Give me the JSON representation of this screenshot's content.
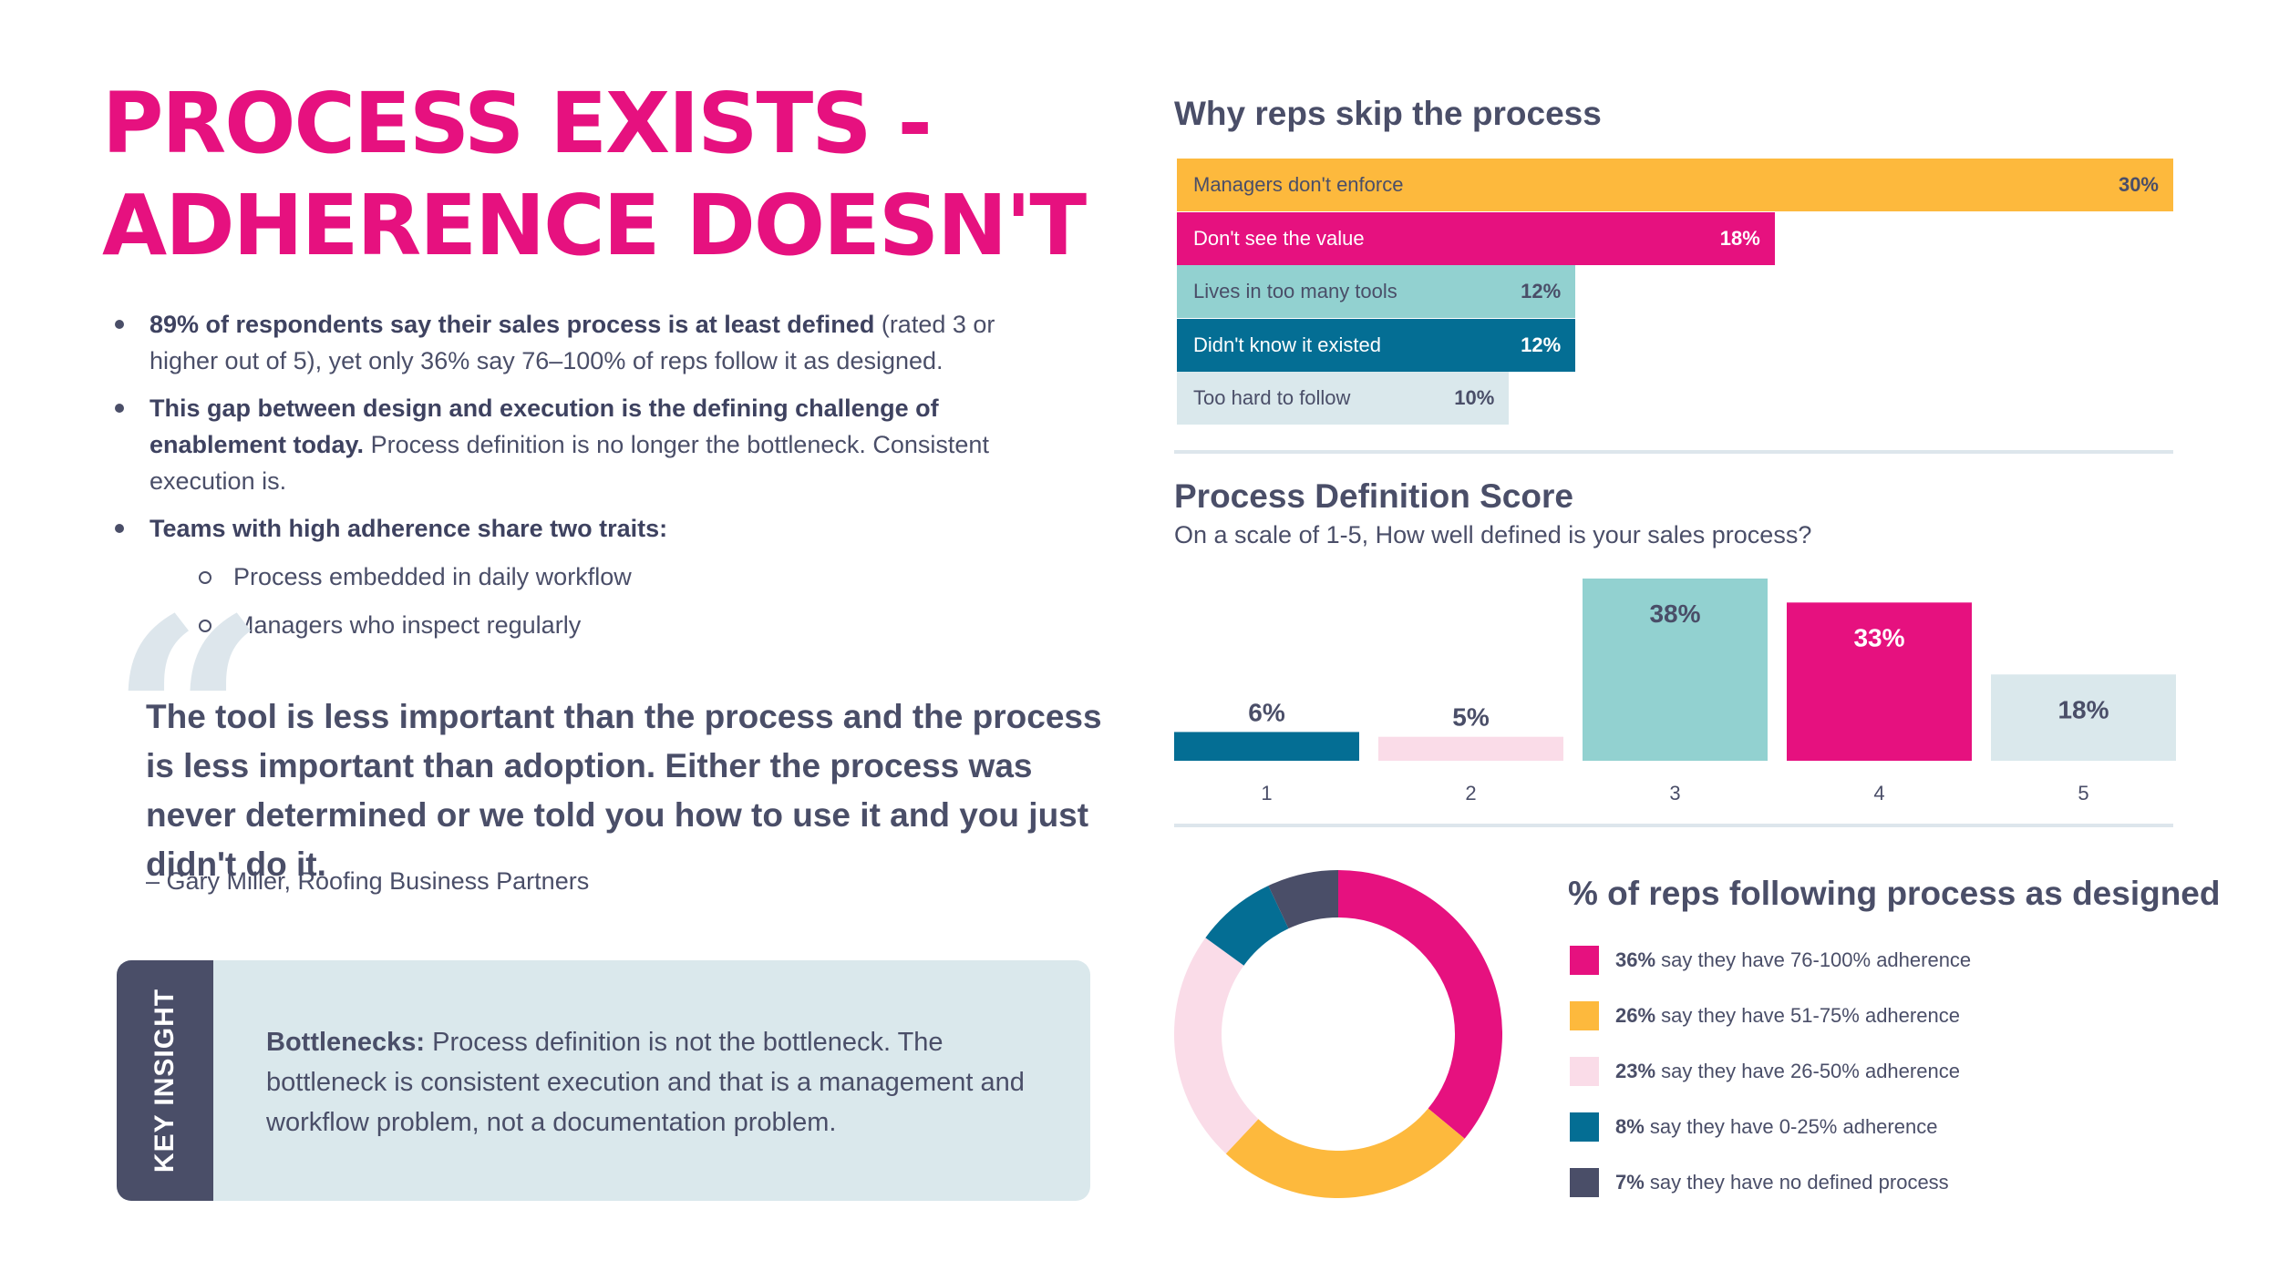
{
  "title": {
    "line1": "PROCESS EXISTS -",
    "line2": "ADHERENCE DOESN'T"
  },
  "bullets": [
    {
      "bold": "89% of respondents say their sales process is at least defined",
      "text": " (rated 3 or higher out of 5), yet only 36% say 76–100% of reps follow it as designed."
    },
    {
      "bold": "This gap between design and execution is the defining challenge of enablement today.",
      "text": " Process definition is no longer the bottleneck. Consistent execution is."
    },
    {
      "bold": "Teams with high adherence share two traits:",
      "text": ""
    }
  ],
  "sub_bullets": [
    "Process embedded in daily workflow",
    "Managers who inspect regularly"
  ],
  "quote": {
    "mark": "“",
    "text": "The tool is less important than the process and the process is less important than adoption. Either the process was never determined or we told you how to use it and you just didn't do it.",
    "attribution": "– Gary Miller, Roofing Business Partners"
  },
  "insight": {
    "tab": "KEY INSIGHT",
    "bold": "Bottlenecks:",
    "text": " Process definition is not the bottleneck. The bottleneck is consistent execution and that is a management and workflow problem, not a documentation problem."
  },
  "colors": {
    "pink": "#e6117f",
    "yellow": "#fdb93d",
    "teal": "#92d1d0",
    "blue": "#046e94",
    "light_blue": "#dae8ec",
    "light_pink": "#fadce8",
    "slate": "#4a4e68"
  },
  "chart_data": [
    {
      "type": "bar",
      "orientation": "horizontal",
      "title": "Why reps skip the process",
      "categories": [
        "Managers don't enforce",
        "Don't see the value",
        "Lives in too many tools",
        "Didn't know it existed",
        "Too hard to follow"
      ],
      "values": [
        30,
        18,
        12,
        12,
        10
      ],
      "value_labels": [
        "30%",
        "18%",
        "12%",
        "12%",
        "10%"
      ],
      "colors": [
        "#fdb93d",
        "#e6117f",
        "#92d1d0",
        "#046e94",
        "#dae8ec"
      ],
      "text_colors": [
        "#4a4e68",
        "#ffffff",
        "#4a4e68",
        "#ffffff",
        "#4a4e68"
      ],
      "xlim": [
        0,
        30
      ]
    },
    {
      "type": "bar",
      "title": "Process Definition Score",
      "subtitle": "On a scale of 1-5, How well defined is your sales process?",
      "categories": [
        "1",
        "2",
        "3",
        "4",
        "5"
      ],
      "values": [
        6,
        5,
        38,
        33,
        18
      ],
      "value_labels": [
        "6%",
        "5%",
        "38%",
        "33%",
        "18%"
      ],
      "colors": [
        "#046e94",
        "#fadce8",
        "#92d1d0",
        "#e6117f",
        "#dae8ec"
      ],
      "label_colors": [
        "#4a4e68",
        "#4a4e68",
        "#4a4e68",
        "#ffffff",
        "#4a4e68"
      ],
      "ylim": [
        0,
        38
      ]
    },
    {
      "type": "pie",
      "donut": true,
      "title": "% of reps following process as designed",
      "slices": [
        {
          "value": 36,
          "pct": "36%",
          "label": " say they have 76-100% adherence",
          "color": "#e6117f"
        },
        {
          "value": 26,
          "pct": "26%",
          "label": " say they have 51-75% adherence",
          "color": "#fdb93d"
        },
        {
          "value": 23,
          "pct": "23%",
          "label": " say they have 26-50% adherence",
          "color": "#fadce8"
        },
        {
          "value": 8,
          "pct": "8%",
          "label": " say they have 0-25% adherence",
          "color": "#046e94"
        },
        {
          "value": 7,
          "pct": "7%",
          "label": " say they have no defined process",
          "color": "#4a4e68"
        }
      ]
    }
  ]
}
